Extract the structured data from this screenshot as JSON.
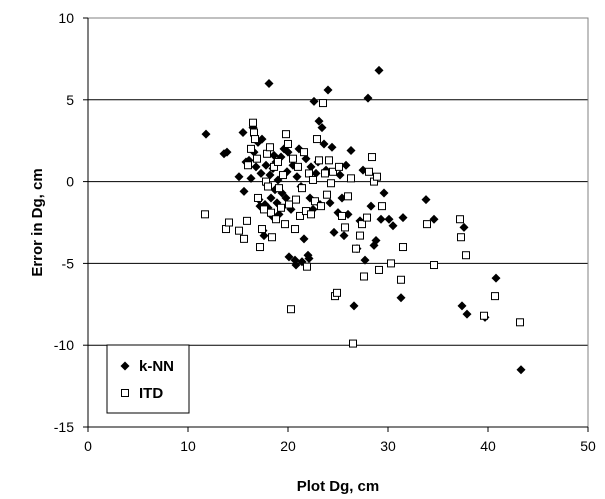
{
  "chart_data": {
    "type": "scatter",
    "title": "",
    "xlabel": "Plot Dg, cm",
    "ylabel": "Error in Dg, cm",
    "xlim": [
      0,
      50
    ],
    "ylim": [
      -15,
      10
    ],
    "xticks": [
      0,
      10,
      20,
      30,
      40,
      50
    ],
    "yticks": [
      -15,
      -10,
      -5,
      0,
      5,
      10
    ],
    "grid": "horizontal",
    "legend_position": "bottom-left",
    "series": [
      {
        "name": "k-NN",
        "marker": "filled-diamond",
        "color": "#000000",
        "points": [
          [
            11.8,
            2.9
          ],
          [
            13.6,
            1.7
          ],
          [
            13.9,
            1.8
          ],
          [
            15.1,
            0.3
          ],
          [
            15.5,
            3.0
          ],
          [
            15.6,
            -0.6
          ],
          [
            15.8,
            1.2
          ],
          [
            16.1,
            1.3
          ],
          [
            16.3,
            0.2
          ],
          [
            16.5,
            3.3
          ],
          [
            16.6,
            1.8
          ],
          [
            16.8,
            0.9
          ],
          [
            17.0,
            2.4
          ],
          [
            17.1,
            -1.1
          ],
          [
            17.2,
            -1.5
          ],
          [
            17.3,
            0.5
          ],
          [
            17.4,
            2.6
          ],
          [
            17.5,
            -3.0
          ],
          [
            17.6,
            -3.3
          ],
          [
            17.7,
            -1.4
          ],
          [
            17.8,
            1.0
          ],
          [
            17.9,
            -0.2
          ],
          [
            18.0,
            -1.6
          ],
          [
            18.1,
            6.0
          ],
          [
            18.2,
            0.4
          ],
          [
            18.3,
            -1.0
          ],
          [
            18.4,
            -2.1
          ],
          [
            18.5,
            0.8
          ],
          [
            18.6,
            1.6
          ],
          [
            18.7,
            -0.5
          ],
          [
            18.8,
            1.2
          ],
          [
            18.9,
            -1.3
          ],
          [
            19.0,
            0.1
          ],
          [
            19.1,
            -2.0
          ],
          [
            19.3,
            1.5
          ],
          [
            19.4,
            -0.7
          ],
          [
            19.6,
            2.0
          ],
          [
            19.8,
            -1.0
          ],
          [
            19.9,
            0.6
          ],
          [
            20.0,
            1.8
          ],
          [
            20.1,
            -4.6
          ],
          [
            20.3,
            -1.7
          ],
          [
            20.5,
            1.0
          ],
          [
            20.7,
            -4.8
          ],
          [
            20.8,
            -5.1
          ],
          [
            20.9,
            0.3
          ],
          [
            21.1,
            2.0
          ],
          [
            21.3,
            -0.3
          ],
          [
            21.4,
            -4.9
          ],
          [
            21.6,
            -3.5
          ],
          [
            21.8,
            1.4
          ],
          [
            22.0,
            -4.5
          ],
          [
            22.1,
            -4.7
          ],
          [
            22.2,
            -1.0
          ],
          [
            22.3,
            0.9
          ],
          [
            22.5,
            -1.7
          ],
          [
            22.6,
            4.9
          ],
          [
            22.8,
            0.5
          ],
          [
            23.0,
            1.2
          ],
          [
            23.1,
            3.7
          ],
          [
            23.2,
            -1.4
          ],
          [
            23.4,
            3.3
          ],
          [
            23.6,
            2.3
          ],
          [
            23.8,
            0.7
          ],
          [
            24.0,
            5.6
          ],
          [
            24.2,
            -1.3
          ],
          [
            24.4,
            2.1
          ],
          [
            24.6,
            -3.1
          ],
          [
            24.8,
            -6.9
          ],
          [
            25.0,
            -1.9
          ],
          [
            25.2,
            0.4
          ],
          [
            25.4,
            -1.0
          ],
          [
            25.6,
            -3.3
          ],
          [
            25.8,
            1.0
          ],
          [
            26.0,
            -2.0
          ],
          [
            26.3,
            1.9
          ],
          [
            26.6,
            -7.6
          ],
          [
            26.9,
            -4.1
          ],
          [
            27.2,
            -2.4
          ],
          [
            27.5,
            0.7
          ],
          [
            27.7,
            -4.8
          ],
          [
            28.0,
            5.1
          ],
          [
            28.3,
            -1.5
          ],
          [
            28.6,
            -3.9
          ],
          [
            28.8,
            -3.6
          ],
          [
            29.1,
            6.8
          ],
          [
            29.3,
            -2.3
          ],
          [
            29.6,
            -0.7
          ],
          [
            30.1,
            -2.3
          ],
          [
            30.5,
            -2.7
          ],
          [
            31.3,
            -7.1
          ],
          [
            31.5,
            -2.2
          ],
          [
            33.8,
            -1.1
          ],
          [
            34.6,
            -2.3
          ],
          [
            37.4,
            -7.6
          ],
          [
            37.6,
            -2.8
          ],
          [
            37.9,
            -8.1
          ],
          [
            39.7,
            -8.3
          ],
          [
            40.8,
            -5.9
          ],
          [
            43.3,
            -11.5
          ]
        ]
      },
      {
        "name": "ITD",
        "marker": "open-square",
        "color": "#000000",
        "points": [
          [
            11.7,
            -2.0
          ],
          [
            13.8,
            -2.9
          ],
          [
            14.1,
            -2.5
          ],
          [
            15.1,
            -3.0
          ],
          [
            15.6,
            -3.5
          ],
          [
            15.9,
            -2.4
          ],
          [
            16.0,
            1.0
          ],
          [
            16.3,
            2.0
          ],
          [
            16.5,
            3.6
          ],
          [
            16.6,
            3.0
          ],
          [
            16.7,
            2.6
          ],
          [
            16.9,
            1.4
          ],
          [
            17.0,
            -1.0
          ],
          [
            17.2,
            -4.0
          ],
          [
            17.4,
            -2.9
          ],
          [
            17.6,
            -1.7
          ],
          [
            17.8,
            0.0
          ],
          [
            17.9,
            1.7
          ],
          [
            18.0,
            -0.3
          ],
          [
            18.2,
            2.1
          ],
          [
            18.3,
            -1.9
          ],
          [
            18.4,
            -3.4
          ],
          [
            18.6,
            0.9
          ],
          [
            18.8,
            -2.3
          ],
          [
            19.0,
            1.2
          ],
          [
            19.1,
            -0.4
          ],
          [
            19.3,
            -1.6
          ],
          [
            19.5,
            0.4
          ],
          [
            19.7,
            -2.6
          ],
          [
            19.8,
            2.9
          ],
          [
            20.0,
            2.3
          ],
          [
            20.1,
            -1.4
          ],
          [
            20.3,
            -7.8
          ],
          [
            20.5,
            1.4
          ],
          [
            20.7,
            -2.9
          ],
          [
            20.8,
            -1.1
          ],
          [
            21.0,
            0.9
          ],
          [
            21.2,
            -2.1
          ],
          [
            21.4,
            -0.4
          ],
          [
            21.6,
            1.8
          ],
          [
            21.8,
            -1.8
          ],
          [
            21.9,
            -5.2
          ],
          [
            22.1,
            0.5
          ],
          [
            22.3,
            -2.0
          ],
          [
            22.5,
            0.1
          ],
          [
            22.7,
            -1.2
          ],
          [
            22.9,
            2.6
          ],
          [
            23.1,
            1.3
          ],
          [
            23.3,
            -1.5
          ],
          [
            23.5,
            4.8
          ],
          [
            23.7,
            0.5
          ],
          [
            23.9,
            -0.8
          ],
          [
            24.1,
            1.3
          ],
          [
            24.3,
            -0.1
          ],
          [
            24.5,
            0.6
          ],
          [
            24.7,
            -7.0
          ],
          [
            24.9,
            -6.8
          ],
          [
            25.1,
            0.9
          ],
          [
            25.4,
            -2.1
          ],
          [
            25.7,
            -2.8
          ],
          [
            26.0,
            -0.9
          ],
          [
            26.3,
            0.2
          ],
          [
            26.5,
            -9.9
          ],
          [
            26.8,
            -4.1
          ],
          [
            27.2,
            -3.3
          ],
          [
            27.4,
            -2.6
          ],
          [
            27.6,
            -5.8
          ],
          [
            27.9,
            -2.2
          ],
          [
            28.1,
            0.6
          ],
          [
            28.4,
            1.5
          ],
          [
            28.6,
            0.0
          ],
          [
            28.9,
            0.3
          ],
          [
            29.1,
            -5.4
          ],
          [
            29.4,
            -1.5
          ],
          [
            30.3,
            -5.0
          ],
          [
            31.3,
            -6.0
          ],
          [
            31.5,
            -4.0
          ],
          [
            33.9,
            -2.6
          ],
          [
            34.6,
            -5.1
          ],
          [
            37.2,
            -2.3
          ],
          [
            37.3,
            -3.4
          ],
          [
            37.8,
            -4.5
          ],
          [
            39.6,
            -8.2
          ],
          [
            40.7,
            -7.0
          ],
          [
            43.2,
            -8.6
          ]
        ]
      }
    ]
  }
}
